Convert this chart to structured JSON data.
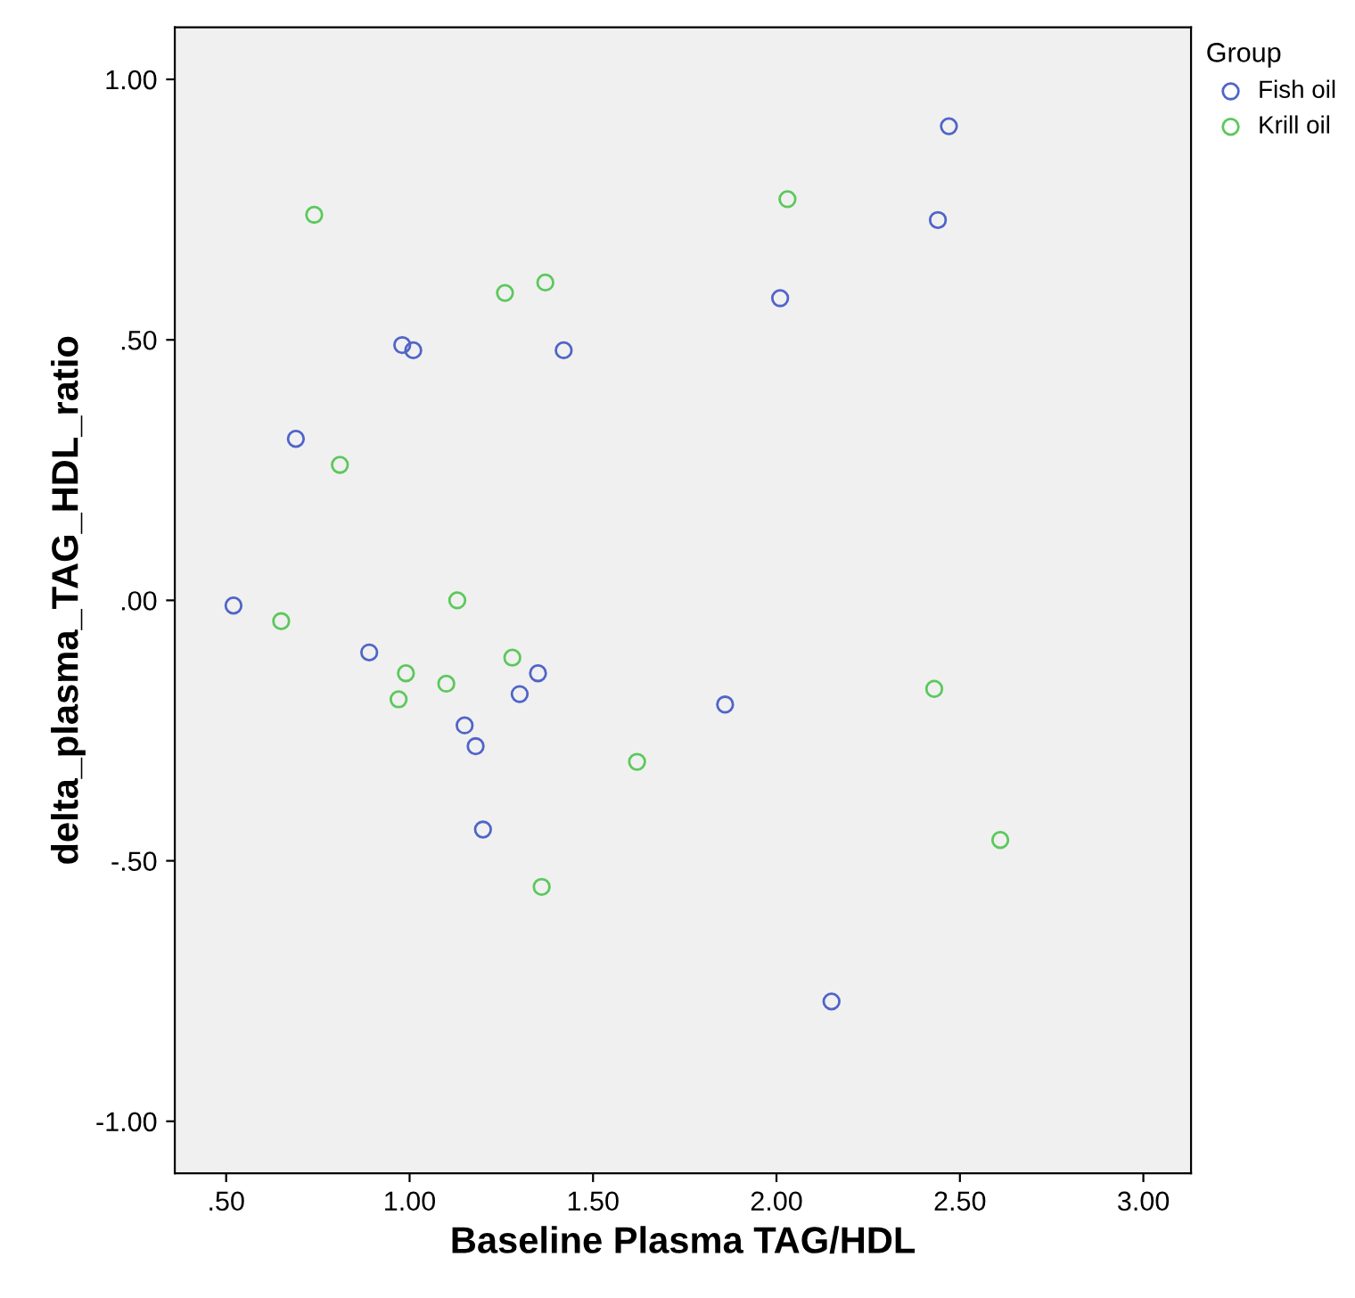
{
  "chart_data": {
    "type": "scatter",
    "xlabel": "Baseline Plasma TAG/HDL",
    "ylabel": "delta_plasma_TAG_HDL_ratio",
    "legend_title": "Group",
    "legend": "top right",
    "marker": "circle",
    "grid": false,
    "xlim": [
      0.36,
      3.13
    ],
    "ylim": [
      -1.1,
      1.1
    ],
    "xticks": [
      {
        "value": 0.5,
        "label": ".50"
      },
      {
        "value": 1.0,
        "label": "1.00"
      },
      {
        "value": 1.5,
        "label": "1.50"
      },
      {
        "value": 2.0,
        "label": "2.00"
      },
      {
        "value": 2.5,
        "label": "2.50"
      },
      {
        "value": 3.0,
        "label": "3.00"
      }
    ],
    "yticks": [
      {
        "value": -1.0,
        "label": "-1.00"
      },
      {
        "value": -0.5,
        "label": "-.50"
      },
      {
        "value": 0.0,
        "label": ".00"
      },
      {
        "value": 0.5,
        "label": ".50"
      },
      {
        "value": 1.0,
        "label": "1.00"
      }
    ],
    "series": [
      {
        "name": "Fish oil",
        "color": "#5064c8",
        "x": [
          0.52,
          0.69,
          0.89,
          0.98,
          1.01,
          1.15,
          1.18,
          1.2,
          1.3,
          1.35,
          1.42,
          1.86,
          2.01,
          2.15,
          2.44,
          2.47
        ],
        "values": [
          -0.01,
          0.31,
          -0.1,
          0.49,
          0.48,
          -0.24,
          -0.28,
          -0.44,
          -0.18,
          -0.14,
          0.48,
          -0.2,
          0.58,
          -0.77,
          0.73,
          0.91
        ]
      },
      {
        "name": "Krill oil",
        "color": "#5cc85c",
        "x": [
          0.74,
          0.81,
          0.65,
          0.97,
          0.99,
          1.1,
          1.13,
          1.26,
          1.28,
          1.37,
          1.36,
          1.62,
          2.03,
          2.43,
          2.61
        ],
        "values": [
          0.74,
          0.26,
          -0.04,
          -0.19,
          -0.14,
          -0.16,
          0.0,
          0.59,
          -0.11,
          0.61,
          -0.55,
          -0.31,
          0.77,
          -0.17,
          -0.46
        ]
      }
    ]
  }
}
